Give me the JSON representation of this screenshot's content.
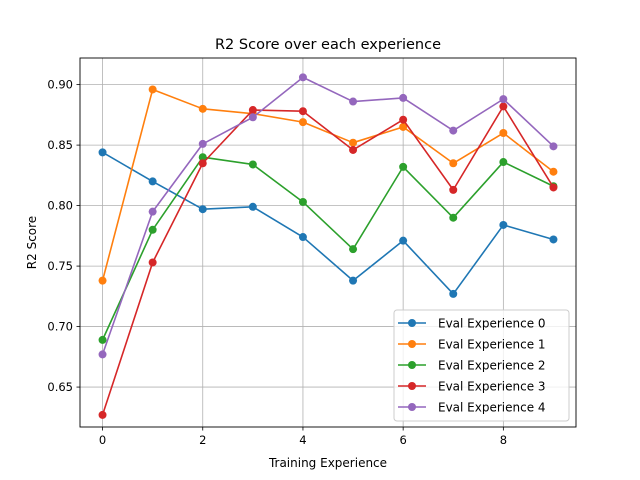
{
  "chart_data": {
    "type": "line",
    "title": "R2 Score over each experience",
    "xlabel": "Training Experience",
    "ylabel": "R2 Score",
    "xlim": [
      -0.45,
      9.45
    ],
    "ylim": [
      0.617,
      0.922
    ],
    "xticks": [
      0,
      2,
      4,
      6,
      8
    ],
    "yticks": [
      0.65,
      0.7,
      0.75,
      0.8,
      0.85,
      0.9
    ],
    "grid": true,
    "legend_position": "lower-right",
    "x": [
      0,
      1,
      2,
      3,
      4,
      5,
      6,
      7,
      8,
      9
    ],
    "series": [
      {
        "name": "Eval Experience 0",
        "color": "#1f77b4",
        "values": [
          0.844,
          0.82,
          0.797,
          0.799,
          0.774,
          0.738,
          0.771,
          0.727,
          0.784,
          0.772
        ]
      },
      {
        "name": "Eval Experience 1",
        "color": "#ff7f0e",
        "values": [
          0.738,
          0.896,
          0.88,
          0.876,
          0.869,
          0.852,
          0.865,
          0.835,
          0.86,
          0.828
        ]
      },
      {
        "name": "Eval Experience 2",
        "color": "#2ca02c",
        "values": [
          0.689,
          0.78,
          0.84,
          0.834,
          0.803,
          0.764,
          0.832,
          0.79,
          0.836,
          0.816
        ]
      },
      {
        "name": "Eval Experience 3",
        "color": "#d62728",
        "values": [
          0.627,
          0.753,
          0.835,
          0.879,
          0.878,
          0.846,
          0.871,
          0.813,
          0.882,
          0.815
        ]
      },
      {
        "name": "Eval Experience 4",
        "color": "#9467bd",
        "values": [
          0.677,
          0.795,
          0.851,
          0.873,
          0.906,
          0.886,
          0.889,
          0.862,
          0.888,
          0.849
        ]
      }
    ]
  }
}
